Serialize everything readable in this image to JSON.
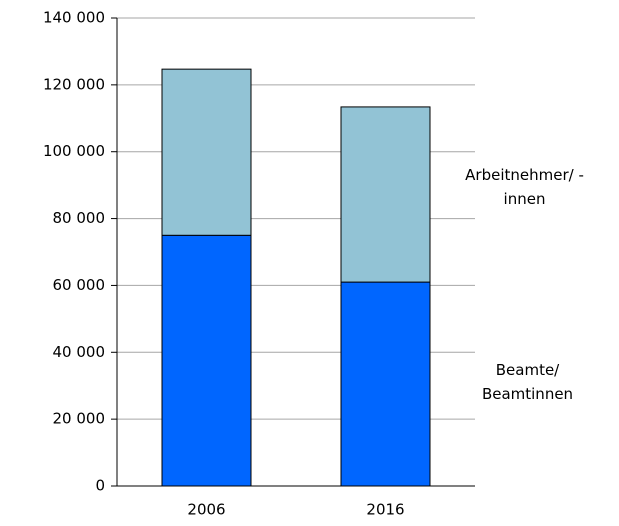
{
  "chart_data": {
    "type": "stacked_bar",
    "categories": [
      "2006",
      "2016"
    ],
    "series": [
      {
        "name": "Beamte/ Beamtinnen",
        "color": "#0066ff",
        "values": [
          75000,
          61000
        ]
      },
      {
        "name": "Arbeitnehmer/ -innen",
        "color": "#92c3d5",
        "values": [
          49700,
          52400
        ]
      }
    ],
    "ylim": [
      0,
      140000
    ],
    "yticks": [
      {
        "value": 0,
        "label": "0"
      },
      {
        "value": 20000,
        "label": "20 000"
      },
      {
        "value": 40000,
        "label": "40 000"
      },
      {
        "value": 60000,
        "label": "60 000"
      },
      {
        "value": 80000,
        "label": "80 000"
      },
      {
        "value": 100000,
        "label": "100 000"
      },
      {
        "value": 120000,
        "label": "120 000"
      },
      {
        "value": 140000,
        "label": "140 000"
      }
    ],
    "grid": true
  }
}
